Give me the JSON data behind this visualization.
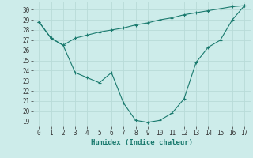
{
  "line1_x": [
    0,
    1,
    2,
    3,
    4,
    5,
    6,
    7,
    8,
    9,
    10,
    11,
    12,
    13,
    14,
    15,
    16,
    17
  ],
  "line1_y": [
    28.8,
    27.2,
    26.5,
    23.8,
    23.3,
    22.8,
    23.8,
    20.8,
    19.1,
    18.9,
    19.1,
    19.8,
    21.2,
    24.8,
    26.3,
    27.0,
    29.0,
    30.4
  ],
  "line2_x": [
    0,
    1,
    2,
    3,
    4,
    5,
    6,
    7,
    8,
    9,
    10,
    11,
    12,
    13,
    14,
    15,
    16,
    17
  ],
  "line2_y": [
    28.8,
    27.2,
    26.5,
    27.2,
    27.5,
    27.8,
    28.0,
    28.2,
    28.5,
    28.7,
    29.0,
    29.2,
    29.5,
    29.7,
    29.9,
    30.1,
    30.3,
    30.4
  ],
  "line_color": "#1a7a6e",
  "bg_color": "#cdecea",
  "grid_color_major": "#b8dbd8",
  "grid_color_minor": "#d4edeb",
  "xlabel": "Humidex (Indice chaleur)",
  "ylim": [
    18.5,
    30.8
  ],
  "xlim": [
    -0.5,
    17.5
  ],
  "yticks": [
    19,
    20,
    21,
    22,
    23,
    24,
    25,
    26,
    27,
    28,
    29,
    30
  ],
  "xticks": [
    0,
    1,
    2,
    3,
    4,
    5,
    6,
    7,
    8,
    9,
    10,
    11,
    12,
    13,
    14,
    15,
    16,
    17
  ],
  "tick_fontsize": 5.5,
  "xlabel_fontsize": 6.5
}
